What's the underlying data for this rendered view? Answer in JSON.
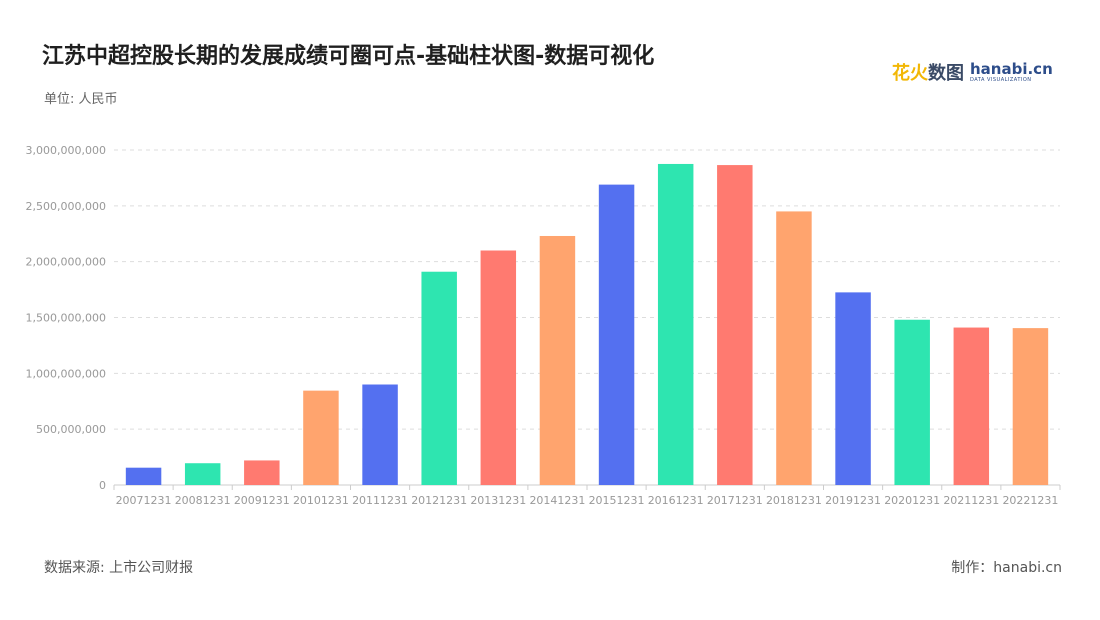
{
  "title": "江苏中超控股长期的发展成绩可圈可点-基础柱状图-数据可视化",
  "unit": "单位: 人民币",
  "logo": {
    "cn_part1": "花火",
    "cn_part2": "数图",
    "en": "hanabi.cn",
    "sub": "DATA VISUALIZATION"
  },
  "source": "数据来源: 上市公司财报",
  "credit": "制作：hanabi.cn",
  "chart_data": {
    "type": "bar",
    "categories": [
      "20071231",
      "20081231",
      "20091231",
      "20101231",
      "20111231",
      "20121231",
      "20131231",
      "20141231",
      "20151231",
      "20161231",
      "20171231",
      "20181231",
      "20191231",
      "20201231",
      "20211231",
      "20221231"
    ],
    "values": [
      155000000,
      195000000,
      220000000,
      845000000,
      900000000,
      1910000000,
      2100000000,
      2230000000,
      2690000000,
      2875000000,
      2865000000,
      2450000000,
      1725000000,
      1480000000,
      1410000000,
      1405000000
    ],
    "ylim": [
      0,
      3000000000
    ],
    "yticks": [
      0,
      500000000,
      1000000000,
      1500000000,
      2000000000,
      2500000000,
      3000000000
    ],
    "grid": true,
    "colors": [
      "#5470f0",
      "#2ee5b0",
      "#ff7a70",
      "#ffa46e"
    ]
  }
}
